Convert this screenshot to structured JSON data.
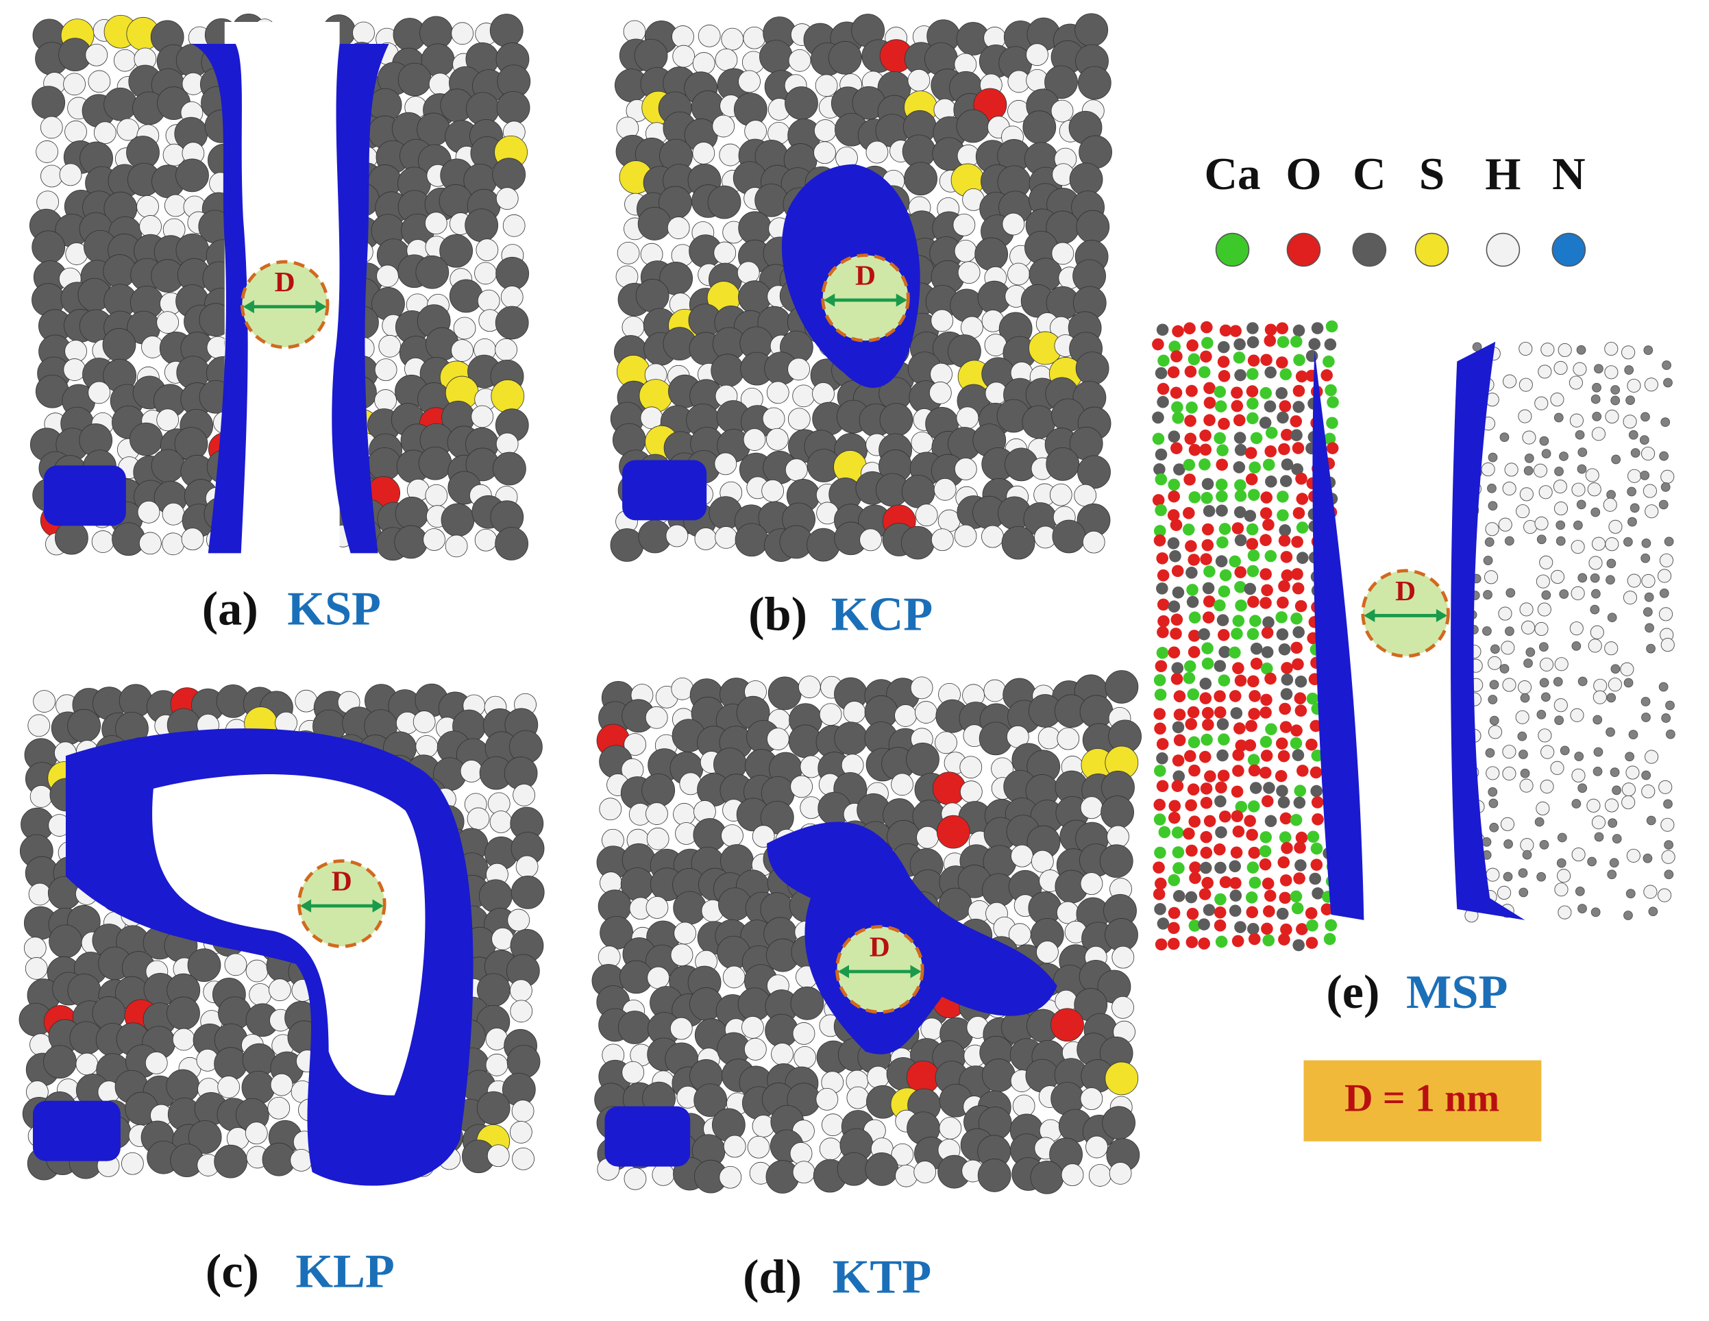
{
  "panels": [
    {
      "label": "(a)",
      "name": "KSP",
      "pore_label": "D"
    },
    {
      "label": "(b)",
      "name": "KCP",
      "pore_label": "D"
    },
    {
      "label": "(c)",
      "name": "KLP",
      "pore_label": "D"
    },
    {
      "label": "(d)",
      "name": "KTP",
      "pore_label": "D"
    },
    {
      "label": "(e)",
      "name": "MSP",
      "pore_label": "D"
    }
  ],
  "legend": {
    "elements": [
      {
        "symbol": "Ca",
        "color": "#3ec92a"
      },
      {
        "symbol": "O",
        "color": "#e0201e"
      },
      {
        "symbol": "C",
        "color": "#5c5c5c"
      },
      {
        "symbol": "S",
        "color": "#f2e22a"
      },
      {
        "symbol": "H",
        "color": "#f2f2f2"
      },
      {
        "symbol": "N",
        "color": "#1c78c8"
      }
    ]
  },
  "scale_note": "D = 1 nm"
}
